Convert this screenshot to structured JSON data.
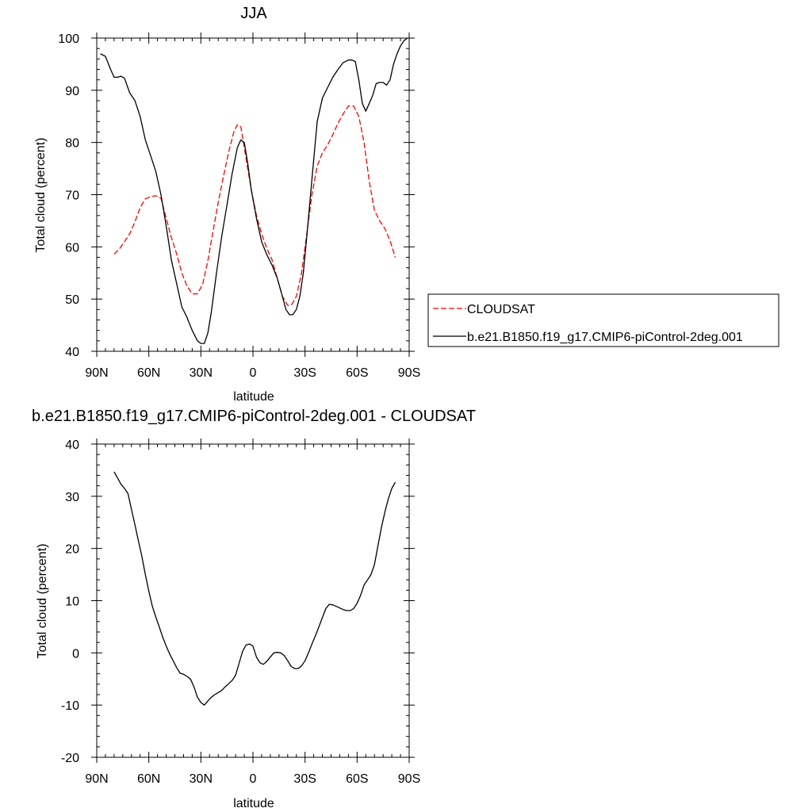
{
  "chart_data": [
    {
      "type": "line",
      "title": "JJA",
      "xlabel": "latitude",
      "ylabel": "Total cloud (percent)",
      "xlim": [
        -90,
        90
      ],
      "ylim": [
        40,
        100
      ],
      "x_ticks": [
        -90,
        -60,
        -30,
        0,
        30,
        60,
        90
      ],
      "x_tick_labels": [
        "90N",
        "60N",
        "30N",
        "0",
        "30S",
        "60S",
        "90S"
      ],
      "y_ticks": [
        40,
        50,
        60,
        70,
        80,
        90,
        100
      ],
      "y_tick_labels": [
        "40",
        "50",
        "60",
        "70",
        "80",
        "90",
        "100"
      ],
      "legend": {
        "placement": "right",
        "entries": [
          "CLOUDSAT",
          "b.e21.B1850.f19_g17.CMIP6-piControl-2deg.001"
        ]
      },
      "series": [
        {
          "name": "CLOUDSAT",
          "color": "#ff0000",
          "dash": "dashed",
          "x": [
            -80,
            -77,
            -74,
            -71,
            -68,
            -65,
            -62,
            -59,
            -56,
            -53,
            -50,
            -47,
            -44,
            -41,
            -38,
            -35,
            -32,
            -29,
            -26,
            -23,
            -20,
            -17,
            -14,
            -11,
            -9,
            -7,
            -5,
            -3,
            -1,
            2,
            5,
            8,
            11,
            14,
            17,
            20,
            22,
            25,
            28,
            31,
            34,
            37,
            40,
            43,
            46,
            49,
            52,
            55,
            58,
            61,
            64,
            67,
            70,
            73,
            76,
            79,
            82
          ],
          "y": [
            58.6,
            59.6,
            61,
            62.5,
            64.8,
            67.5,
            69.2,
            69.6,
            69.8,
            69.3,
            65.5,
            61.8,
            58.7,
            55,
            52.5,
            51,
            51,
            52.8,
            57.3,
            63,
            68.5,
            73.5,
            78.2,
            82,
            83.4,
            83,
            79,
            75,
            71,
            66,
            62.5,
            59.7,
            57.5,
            54,
            50.5,
            48.8,
            48.8,
            50.5,
            55,
            62.5,
            70,
            75.5,
            78,
            79.5,
            81.5,
            83.7,
            85.5,
            87,
            87,
            85,
            80,
            72.5,
            67,
            65,
            63.5,
            61.2,
            58
          ]
        },
        {
          "name": "b.e21.B1850.f19_g17.CMIP6-piControl-2deg.001",
          "color": "#000000",
          "dash": "solid",
          "x": [
            -88,
            -85,
            -82,
            -80,
            -78,
            -76,
            -74,
            -71,
            -68,
            -65,
            -62,
            -59,
            -56,
            -53,
            -50,
            -47,
            -44,
            -41,
            -38,
            -35,
            -32,
            -30,
            -28,
            -26,
            -24,
            -21,
            -18,
            -15,
            -12,
            -9,
            -7,
            -5,
            -3,
            -1,
            2,
            5,
            8,
            11,
            14,
            17,
            19,
            21,
            23,
            25,
            27,
            29,
            31,
            34,
            37,
            40,
            43,
            46,
            49,
            52,
            55,
            57,
            59,
            61,
            63,
            65,
            67,
            69,
            71,
            73,
            75,
            77,
            79,
            81,
            83,
            85,
            87,
            89
          ],
          "y": [
            97,
            96.5,
            94,
            92.5,
            92.5,
            92.7,
            92.3,
            89.5,
            88,
            85,
            80.5,
            77.5,
            74.5,
            70,
            64,
            57.5,
            53,
            48.5,
            46.5,
            44,
            42,
            41.5,
            41.5,
            43.5,
            47.5,
            55,
            62,
            68,
            74,
            79,
            80.5,
            80,
            76,
            71,
            65.5,
            61,
            58.5,
            56.5,
            54,
            50.5,
            48,
            47,
            47,
            48,
            50.5,
            55,
            62,
            73,
            84,
            88.5,
            90.5,
            92.5,
            94,
            95.3,
            95.8,
            95.8,
            95.5,
            92,
            87.5,
            86,
            87.5,
            89,
            91.3,
            91.5,
            91.5,
            91,
            92,
            95,
            97,
            98.5,
            99.5,
            100
          ]
        }
      ]
    },
    {
      "type": "line",
      "title": "b.e21.B1850.f19_g17.CMIP6-piControl-2deg.001 - CLOUDSAT",
      "xlabel": "latitude",
      "ylabel": "Total cloud (percent)",
      "xlim": [
        -90,
        90
      ],
      "ylim": [
        -20,
        40
      ],
      "x_ticks": [
        -90,
        -60,
        -30,
        0,
        30,
        60,
        90
      ],
      "x_tick_labels": [
        "90N",
        "60N",
        "30N",
        "0",
        "30S",
        "60S",
        "90S"
      ],
      "y_ticks": [
        -20,
        -10,
        0,
        10,
        20,
        30,
        40
      ],
      "y_tick_labels": [
        "-20",
        "-10",
        "0",
        "10",
        "20",
        "30",
        "40"
      ],
      "series": [
        {
          "color": "#000000",
          "dash": "solid",
          "x": [
            -80,
            -78,
            -76,
            -74,
            -72,
            -70,
            -68,
            -66,
            -64,
            -62,
            -60,
            -58,
            -56,
            -54,
            -52,
            -50,
            -48,
            -46,
            -44,
            -42,
            -40,
            -38,
            -36,
            -34,
            -32,
            -30,
            -28,
            -26,
            -24,
            -22,
            -20,
            -18,
            -16,
            -14,
            -12,
            -10,
            -8,
            -6,
            -4,
            -2,
            0,
            2,
            4,
            6,
            8,
            10,
            12,
            14,
            16,
            18,
            20,
            22,
            24,
            26,
            28,
            30,
            32,
            34,
            36,
            38,
            40,
            42,
            44,
            46,
            48,
            50,
            52,
            54,
            56,
            58,
            60,
            62,
            64,
            66,
            68,
            70,
            72,
            74,
            76,
            78,
            80,
            82
          ],
          "y": [
            34.7,
            33.5,
            32.3,
            31.5,
            30.5,
            27.5,
            24.5,
            21.5,
            18.5,
            15,
            11.8,
            9,
            6.9,
            5,
            3,
            1.3,
            -0.2,
            -1.5,
            -2.8,
            -3.9,
            -4.1,
            -4.5,
            -5,
            -6.5,
            -8.5,
            -9.5,
            -10,
            -9.2,
            -8.5,
            -8,
            -7.6,
            -7.2,
            -6.5,
            -5.9,
            -5.3,
            -4.3,
            -2,
            0.3,
            1.5,
            1.7,
            1.3,
            -0.8,
            -1.9,
            -2.2,
            -1.6,
            -0.8,
            0,
            0.1,
            0,
            -0.5,
            -1.5,
            -2.6,
            -3,
            -3,
            -2.5,
            -1.5,
            0,
            1.7,
            3.3,
            5,
            6.8,
            8.5,
            9.3,
            9.2,
            8.9,
            8.6,
            8.3,
            8.1,
            8.1,
            8.5,
            9.5,
            11,
            13,
            14,
            15,
            16.9,
            20.5,
            24,
            27,
            29.5,
            31.5,
            32.7
          ]
        }
      ]
    }
  ]
}
